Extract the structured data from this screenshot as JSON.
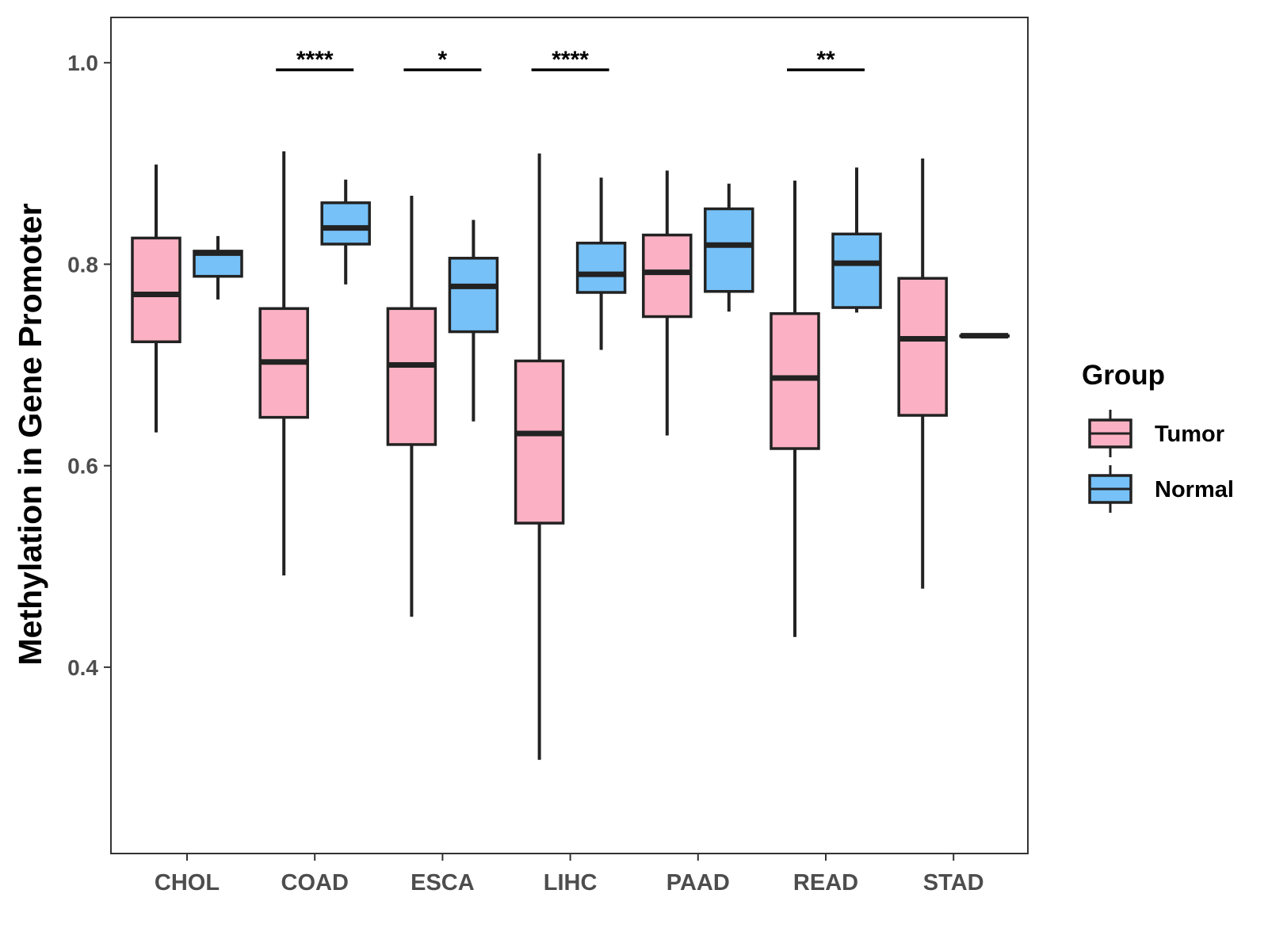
{
  "chart_data": {
    "type": "boxplot",
    "title": "",
    "xlabel": "",
    "ylabel": "Methylation in Gene Promoter",
    "ylim": [
      0.215,
      1.045
    ],
    "y_ticks": [
      "0.4",
      "0.6",
      "0.8",
      "1.0"
    ],
    "y_tick_values": [
      0.4,
      0.6,
      0.8,
      1.0
    ],
    "categories": [
      "CHOL",
      "COAD",
      "ESCA",
      "LIHC",
      "PAAD",
      "READ",
      "STAD"
    ],
    "legend": {
      "title": "Group",
      "position": "right",
      "entries": [
        "Tumor",
        "Normal"
      ]
    },
    "colors": {
      "Tumor": "#FBB1C3",
      "Normal": "#76C1F7",
      "outline": "#222222"
    },
    "series": [
      {
        "name": "Tumor",
        "boxes": [
          {
            "category": "CHOL",
            "min": 0.633,
            "q1": 0.723,
            "median": 0.77,
            "q3": 0.826,
            "max": 0.899
          },
          {
            "category": "COAD",
            "min": 0.491,
            "q1": 0.648,
            "median": 0.703,
            "q3": 0.756,
            "max": 0.912
          },
          {
            "category": "ESCA",
            "min": 0.45,
            "q1": 0.621,
            "median": 0.7,
            "q3": 0.756,
            "max": 0.868
          },
          {
            "category": "LIHC",
            "min": 0.308,
            "q1": 0.543,
            "median": 0.632,
            "q3": 0.704,
            "max": 0.91
          },
          {
            "category": "PAAD",
            "min": 0.63,
            "q1": 0.748,
            "median": 0.792,
            "q3": 0.829,
            "max": 0.893
          },
          {
            "category": "READ",
            "min": 0.43,
            "q1": 0.617,
            "median": 0.687,
            "q3": 0.751,
            "max": 0.883
          },
          {
            "category": "STAD",
            "min": 0.478,
            "q1": 0.65,
            "median": 0.726,
            "q3": 0.786,
            "max": 0.905
          }
        ]
      },
      {
        "name": "Normal",
        "boxes": [
          {
            "category": "CHOL",
            "min": 0.765,
            "q1": 0.788,
            "median": 0.811,
            "q3": 0.813,
            "max": 0.828
          },
          {
            "category": "COAD",
            "min": 0.78,
            "q1": 0.82,
            "median": 0.836,
            "q3": 0.861,
            "max": 0.884
          },
          {
            "category": "ESCA",
            "min": 0.644,
            "q1": 0.733,
            "median": 0.778,
            "q3": 0.806,
            "max": 0.844
          },
          {
            "category": "LIHC",
            "min": 0.715,
            "q1": 0.772,
            "median": 0.79,
            "q3": 0.821,
            "max": 0.886
          },
          {
            "category": "PAAD",
            "min": 0.753,
            "q1": 0.773,
            "median": 0.819,
            "q3": 0.855,
            "max": 0.88
          },
          {
            "category": "READ",
            "min": 0.752,
            "q1": 0.757,
            "median": 0.801,
            "q3": 0.83,
            "max": 0.896
          },
          {
            "category": "STAD",
            "min": 0.729,
            "q1": 0.729,
            "median": 0.729,
            "q3": 0.729,
            "max": 0.729
          }
        ]
      }
    ],
    "annotations": [
      {
        "category": "COAD",
        "label": "****",
        "y": 0.993
      },
      {
        "category": "ESCA",
        "label": "*",
        "y": 0.993
      },
      {
        "category": "LIHC",
        "label": "****",
        "y": 0.993
      },
      {
        "category": "READ",
        "label": "**",
        "y": 0.993
      }
    ]
  }
}
